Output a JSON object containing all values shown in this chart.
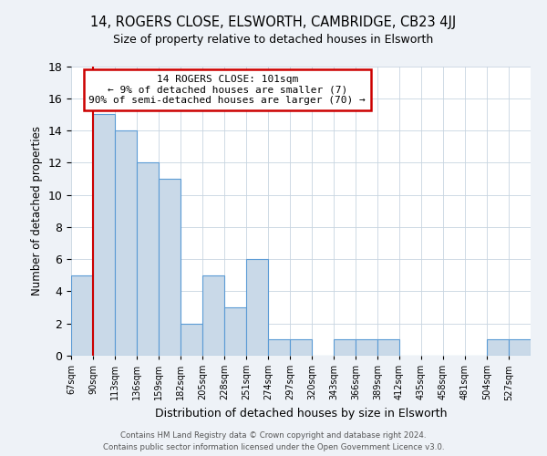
{
  "title": "14, ROGERS CLOSE, ELSWORTH, CAMBRIDGE, CB23 4JJ",
  "subtitle": "Size of property relative to detached houses in Elsworth",
  "xlabel": "Distribution of detached houses by size in Elsworth",
  "ylabel": "Number of detached properties",
  "bin_labels": [
    "67sqm",
    "90sqm",
    "113sqm",
    "136sqm",
    "159sqm",
    "182sqm",
    "205sqm",
    "228sqm",
    "251sqm",
    "274sqm",
    "297sqm",
    "320sqm",
    "343sqm",
    "366sqm",
    "389sqm",
    "412sqm",
    "435sqm",
    "458sqm",
    "481sqm",
    "504sqm",
    "527sqm"
  ],
  "bar_values": [
    5,
    15,
    14,
    12,
    11,
    2,
    5,
    3,
    6,
    1,
    1,
    0,
    1,
    1,
    1,
    0,
    0,
    0,
    0,
    1,
    1
  ],
  "bar_color": "#c9d9e8",
  "bar_edge_color": "#5b9bd5",
  "redline_x": 1,
  "redline_color": "#cc0000",
  "annotation_title": "14 ROGERS CLOSE: 101sqm",
  "annotation_line1": "← 9% of detached houses are smaller (7)",
  "annotation_line2": "90% of semi-detached houses are larger (70) →",
  "annotation_box_color": "#cc0000",
  "ylim": [
    0,
    18
  ],
  "yticks": [
    0,
    2,
    4,
    6,
    8,
    10,
    12,
    14,
    16,
    18
  ],
  "footer_line1": "Contains HM Land Registry data © Crown copyright and database right 2024.",
  "footer_line2": "Contains public sector information licensed under the Open Government Licence v3.0.",
  "bg_color": "#eef2f7",
  "plot_bg_color": "#ffffff"
}
